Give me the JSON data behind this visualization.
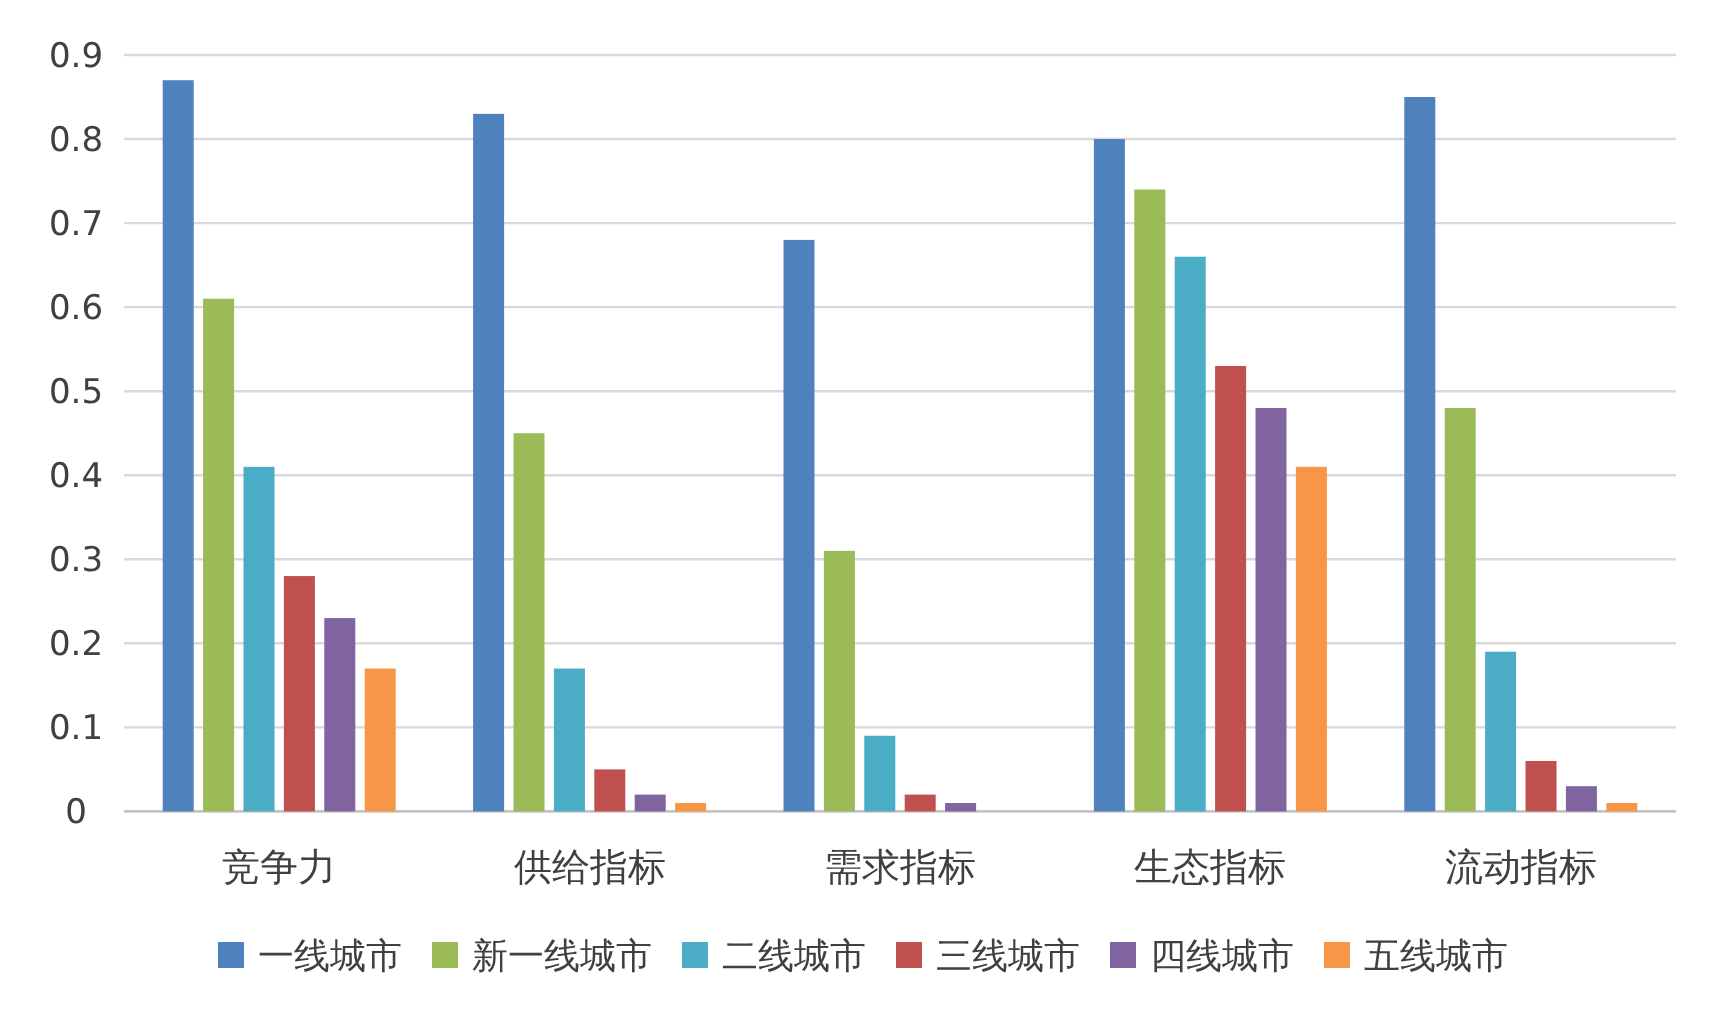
{
  "chart_data": {
    "type": "bar",
    "categories": [
      "竞争力",
      "供给指标",
      "需求指标",
      "生态指标",
      "流动指标"
    ],
    "series": [
      {
        "name": "一线城市",
        "color": "#4f81bd",
        "values": [
          0.87,
          0.83,
          0.68,
          0.8,
          0.85
        ]
      },
      {
        "name": "新一线城市",
        "color": "#9bbb59",
        "values": [
          0.61,
          0.45,
          0.31,
          0.74,
          0.48
        ]
      },
      {
        "name": "二线城市",
        "color": "#4bacc6",
        "values": [
          0.41,
          0.17,
          0.09,
          0.66,
          0.19
        ]
      },
      {
        "name": "三线城市",
        "color": "#c0504d",
        "values": [
          0.28,
          0.05,
          0.02,
          0.53,
          0.06
        ]
      },
      {
        "name": "四线城市",
        "color": "#8064a2",
        "values": [
          0.23,
          0.02,
          0.01,
          0.48,
          0.03
        ]
      },
      {
        "name": "五线城市",
        "color": "#f79646",
        "values": [
          0.17,
          0.01,
          0.0,
          0.41,
          0.01
        ]
      }
    ],
    "ylim": [
      0,
      0.9
    ],
    "yticks": [
      0,
      0.1,
      0.2,
      0.3,
      0.4,
      0.5,
      0.6,
      0.7,
      0.8,
      0.9
    ],
    "grid": "y",
    "legend": "bottom"
  }
}
